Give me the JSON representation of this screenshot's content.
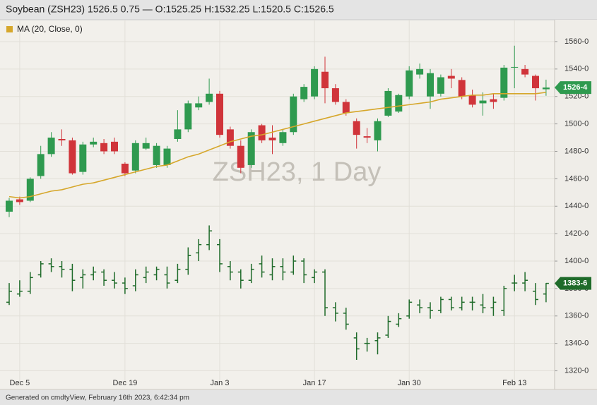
{
  "chart_data": {
    "type": "candlestick",
    "title": "Soybean (ZSH23) 1526.5 0.75 — O:1525.25 H:1532.25 L:1520.5 C:1526.5",
    "watermark": "ZSH23, 1 Day",
    "categories": [
      null,
      "Dec 5",
      null,
      null,
      null,
      null,
      null,
      null,
      null,
      null,
      null,
      "Dec 19",
      null,
      null,
      null,
      null,
      null,
      null,
      null,
      null,
      "Jan 3",
      null,
      null,
      null,
      null,
      null,
      null,
      null,
      null,
      "Jan 17",
      null,
      null,
      null,
      null,
      null,
      null,
      null,
      null,
      "Jan 30",
      null,
      null,
      null,
      null,
      null,
      null,
      null,
      null,
      null,
      "Feb 13",
      null,
      null,
      null
    ],
    "ylim": [
      1310,
      1579
    ],
    "yticks": [
      {
        "value": 1320,
        "label": "1320-0"
      },
      {
        "value": 1340,
        "label": "1340-0"
      },
      {
        "value": 1360,
        "label": "1360-0"
      },
      {
        "value": 1380,
        "label": "1380-0"
      },
      {
        "value": 1400,
        "label": "1400-0"
      },
      {
        "value": 1420,
        "label": "1420-0"
      },
      {
        "value": 1440,
        "label": "1440-0"
      },
      {
        "value": 1460,
        "label": "1460-0"
      },
      {
        "value": 1480,
        "label": "1480-0"
      },
      {
        "value": 1500,
        "label": "1500-0"
      },
      {
        "value": 1520,
        "label": "1520-0"
      },
      {
        "value": 1540,
        "label": "1540-0"
      },
      {
        "value": 1560,
        "label": "1560-0"
      }
    ],
    "grid": true,
    "series": [
      {
        "type": "candlestick",
        "up_color": "#2f9a4f",
        "down_color": "#d0343a",
        "open": [
          1436,
          1445,
          1444,
          1462,
          1478,
          1489,
          1488,
          1465,
          1485,
          1486,
          1487,
          1471,
          1466,
          1482,
          1470,
          1470,
          1489,
          1496,
          1512,
          1516,
          1522,
          1496,
          1484,
          1470,
          1499,
          1490,
          1486,
          1494,
          1518,
          1520,
          1538,
          1526,
          1516,
          1502,
          1491,
          1488,
          1506,
          1509,
          1520,
          1536,
          1520,
          1522,
          1535,
          1532,
          1521,
          1515,
          1518,
          1519,
          1541,
          1540,
          1535,
          1525.25
        ],
        "high": [
          1446,
          1447,
          1461,
          1484,
          1494,
          1496,
          1490,
          1487,
          1490,
          1489,
          1490,
          1472,
          1488,
          1490,
          1486,
          1484,
          1510,
          1517,
          1520,
          1533,
          1524,
          1498,
          1488,
          1496,
          1500,
          1499,
          1496,
          1522,
          1529,
          1542,
          1549,
          1529,
          1518,
          1504,
          1497,
          1504,
          1526,
          1522,
          1542,
          1544,
          1540,
          1536,
          1540,
          1534,
          1525,
          1523,
          1522,
          1543,
          1557,
          1543,
          1536,
          1532.25
        ],
        "low": [
          1432,
          1441,
          1443,
          1460,
          1476,
          1484,
          1463,
          1463,
          1483,
          1478,
          1478,
          1462,
          1464,
          1481,
          1468,
          1468,
          1487,
          1494,
          1510,
          1514,
          1490,
          1482,
          1464,
          1468,
          1486,
          1478,
          1484,
          1492,
          1516,
          1518,
          1515,
          1514,
          1506,
          1482,
          1486,
          1480,
          1505,
          1508,
          1518,
          1533,
          1511,
          1520,
          1526,
          1518,
          1512,
          1506,
          1511,
          1517,
          1526,
          1534,
          1517,
          1520.5
        ],
        "close": [
          1444,
          1443,
          1460,
          1478,
          1490,
          1488,
          1464,
          1485,
          1487,
          1480,
          1480,
          1464,
          1486,
          1486,
          1484,
          1482,
          1496,
          1515,
          1515,
          1522,
          1492,
          1484,
          1468,
          1494,
          1488,
          1488,
          1494,
          1520,
          1527,
          1540,
          1526,
          1516,
          1508,
          1492,
          1490,
          1502,
          1524,
          1521,
          1539,
          1540,
          1537,
          1534,
          1533,
          1520,
          1514,
          1517,
          1516,
          1541,
          1541.5,
          1536,
          1526,
          1526.5
        ]
      },
      {
        "type": "line",
        "name": "MA (20, Close, 0)",
        "color": "#d6a72b",
        "values": [
          1447,
          1446,
          1447,
          1449,
          1451,
          1452,
          1454,
          1456,
          1457,
          1459,
          1461,
          1463,
          1465,
          1467,
          1469,
          1470,
          1473,
          1476,
          1478,
          1481,
          1484,
          1487,
          1489,
          1491,
          1492,
          1494,
          1496,
          1498,
          1500,
          1502,
          1504,
          1506,
          1508,
          1509,
          1510,
          1511,
          1512,
          1513,
          1514,
          1515,
          1516,
          1518,
          1519,
          1520,
          1521,
          1521,
          1522,
          1522,
          1522,
          1522,
          1522,
          1523
        ]
      },
      {
        "type": "ohlc",
        "color": "#1f6b2a",
        "open": [
          1370,
          1376,
          1378,
          1390,
          1398,
          1396,
          1394,
          1388,
          1390,
          1392,
          1386,
          1384,
          1382,
          1388,
          1390,
          1390,
          1386,
          1394,
          1406,
          1412,
          1412,
          1396,
          1392,
          1386,
          1398,
          1390,
          1396,
          1392,
          1400,
          1388,
          1392,
          1366,
          1362,
          1344,
          1340,
          1342,
          1346,
          1354,
          1360,
          1368,
          1366,
          1364,
          1372,
          1366,
          1370,
          1368,
          1366,
          1364,
          1384,
          1384,
          1378,
          1376
        ],
        "high": [
          1384,
          1386,
          1392,
          1400,
          1402,
          1400,
          1398,
          1394,
          1396,
          1394,
          1392,
          1388,
          1394,
          1396,
          1396,
          1396,
          1398,
          1410,
          1416,
          1426,
          1416,
          1400,
          1394,
          1398,
          1404,
          1402,
          1402,
          1404,
          1402,
          1394,
          1394,
          1370,
          1366,
          1348,
          1344,
          1348,
          1360,
          1362,
          1372,
          1372,
          1370,
          1374,
          1374,
          1374,
          1374,
          1376,
          1374,
          1382,
          1390,
          1392,
          1384,
          1384
        ],
        "low": [
          1368,
          1374,
          1376,
          1388,
          1392,
          1388,
          1378,
          1380,
          1386,
          1382,
          1380,
          1376,
          1378,
          1384,
          1386,
          1380,
          1384,
          1390,
          1400,
          1408,
          1392,
          1386,
          1380,
          1384,
          1388,
          1386,
          1386,
          1390,
          1384,
          1384,
          1360,
          1356,
          1350,
          1328,
          1334,
          1332,
          1344,
          1352,
          1358,
          1362,
          1358,
          1362,
          1364,
          1364,
          1364,
          1362,
          1360,
          1360,
          1378,
          1378,
          1368,
          1370
        ],
        "close": [
          1378,
          1378,
          1388,
          1398,
          1396,
          1394,
          1386,
          1390,
          1392,
          1386,
          1384,
          1380,
          1390,
          1392,
          1394,
          1384,
          1394,
          1404,
          1412,
          1422,
          1398,
          1392,
          1386,
          1394,
          1392,
          1396,
          1392,
          1400,
          1390,
          1392,
          1366,
          1362,
          1354,
          1336,
          1340,
          1344,
          1356,
          1358,
          1370,
          1366,
          1364,
          1372,
          1366,
          1370,
          1370,
          1366,
          1370,
          1380,
          1384,
          1386,
          1372,
          1383.75
        ]
      }
    ],
    "price_tags": [
      {
        "value": 1526.5,
        "label": "1526-4",
        "color": "#2f9a4f"
      },
      {
        "value": 1383.75,
        "label": "1383-6",
        "color": "#1f6b2a"
      }
    ]
  },
  "footer": "Generated on cmdtyView, February 16th 2023, 6:42:34 pm"
}
